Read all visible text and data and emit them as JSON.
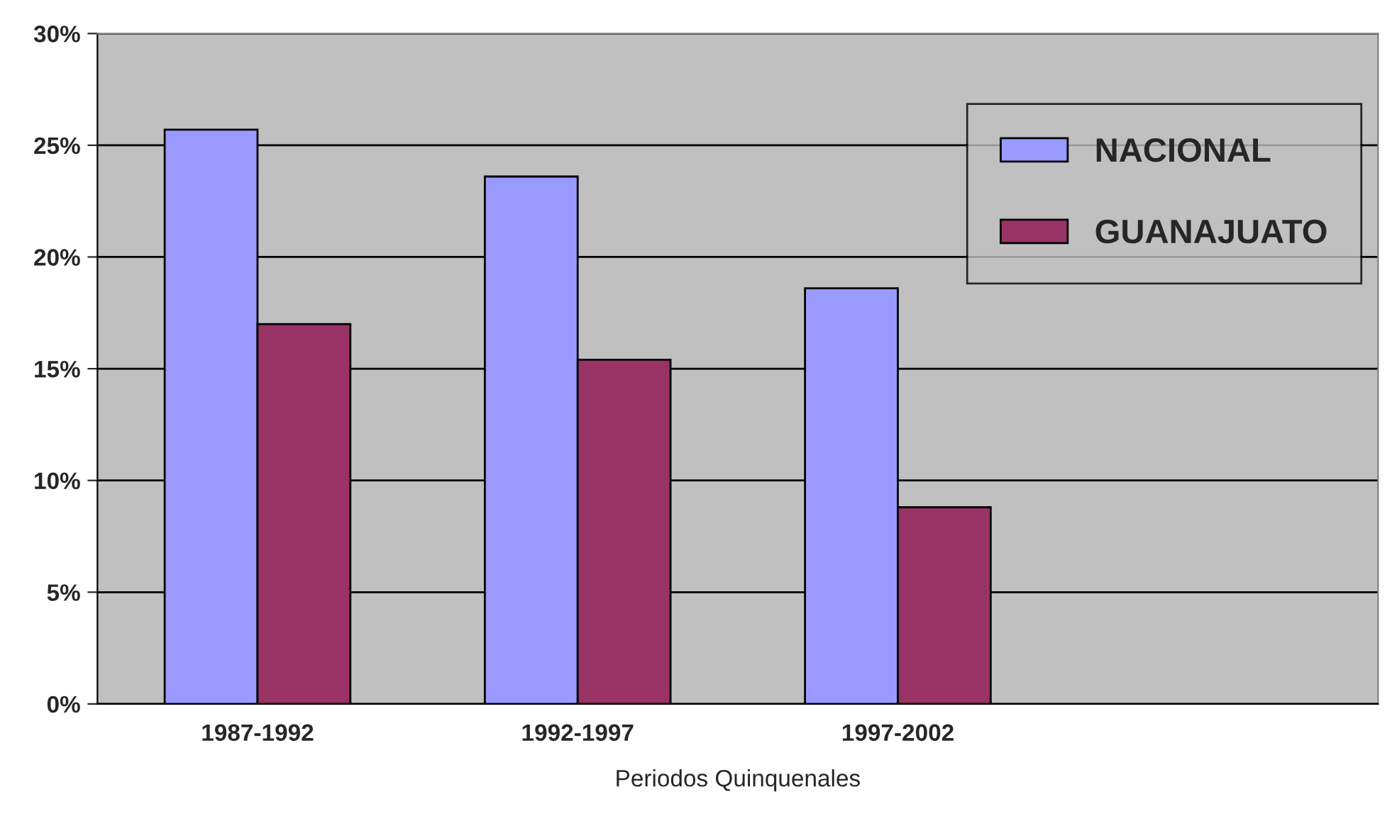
{
  "chart_data": {
    "type": "bar",
    "xlabel": "Periodos Quinquenales",
    "categories": [
      "1987-1992",
      "1992-1997",
      "1997-2002",
      null
    ],
    "series": [
      {
        "name": "NACIONAL",
        "color": "#9999ff",
        "values": [
          25.7,
          23.6,
          18.6,
          null
        ]
      },
      {
        "name": "GUANAJUATO",
        "color": "#993366",
        "values": [
          17.0,
          15.4,
          8.8,
          null
        ]
      }
    ],
    "ylim": [
      0,
      30
    ],
    "yticks": [
      {
        "value": 0,
        "label": "0%"
      },
      {
        "value": 5,
        "label": "5%"
      },
      {
        "value": 10,
        "label": "10%"
      },
      {
        "value": 15,
        "label": "15%"
      },
      {
        "value": 20,
        "label": "20%"
      },
      {
        "value": 25,
        "label": "25%"
      },
      {
        "value": 30,
        "label": "30%"
      }
    ],
    "grid": "y",
    "legend": "top right"
  }
}
